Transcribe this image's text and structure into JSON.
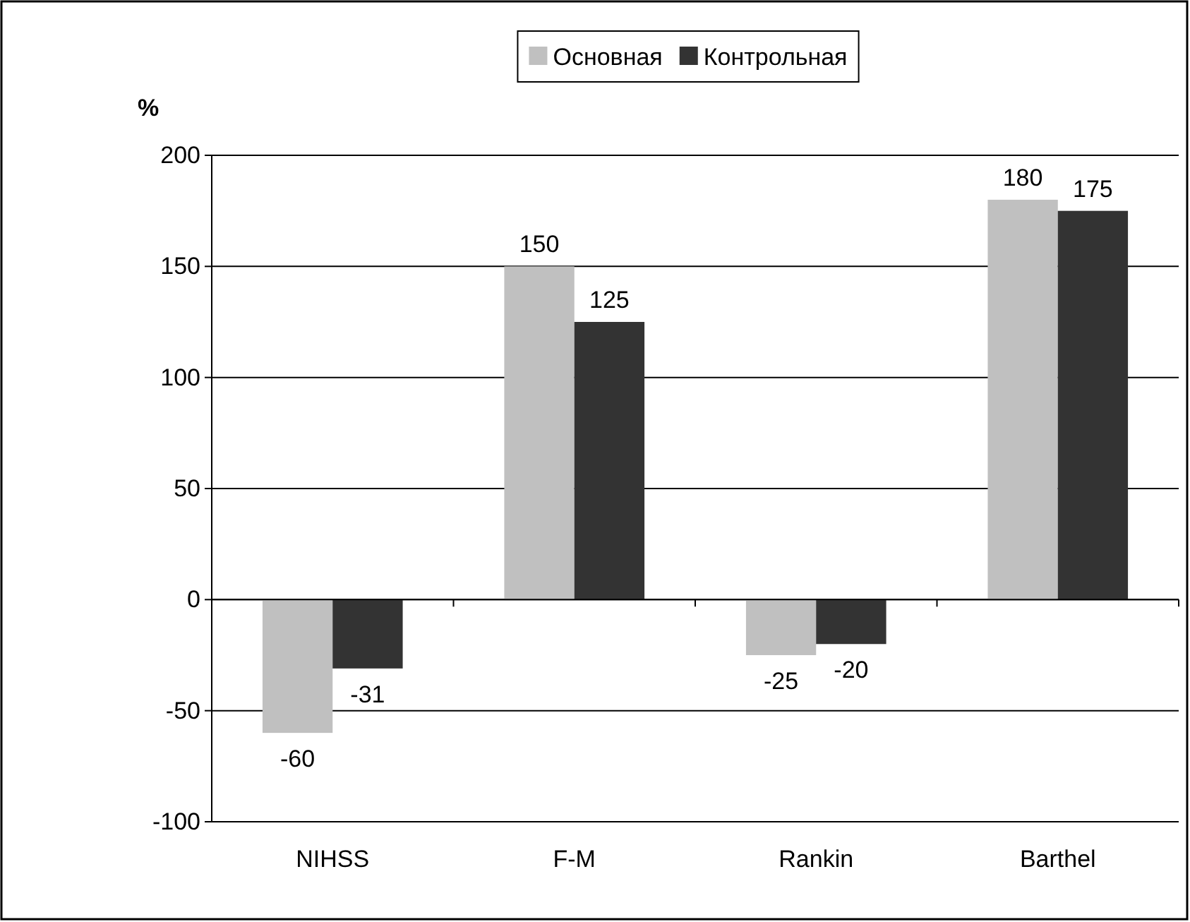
{
  "chart_data": {
    "type": "bar",
    "ylabel": "%",
    "categories": [
      "NIHSS",
      "F-M",
      "Rankin",
      "Barthel"
    ],
    "series": [
      {
        "name": "Основная",
        "color": "#c0c0c0",
        "values": [
          -60,
          150,
          -25,
          180
        ]
      },
      {
        "name": "Контрольная",
        "color": "#333333",
        "values": [
          -31,
          125,
          -20,
          175
        ]
      }
    ],
    "ylim": [
      -100,
      200
    ],
    "yticks": [
      -100,
      -50,
      0,
      50,
      100,
      150,
      200
    ],
    "grid": "y",
    "legend": "top",
    "data_labels": true
  }
}
